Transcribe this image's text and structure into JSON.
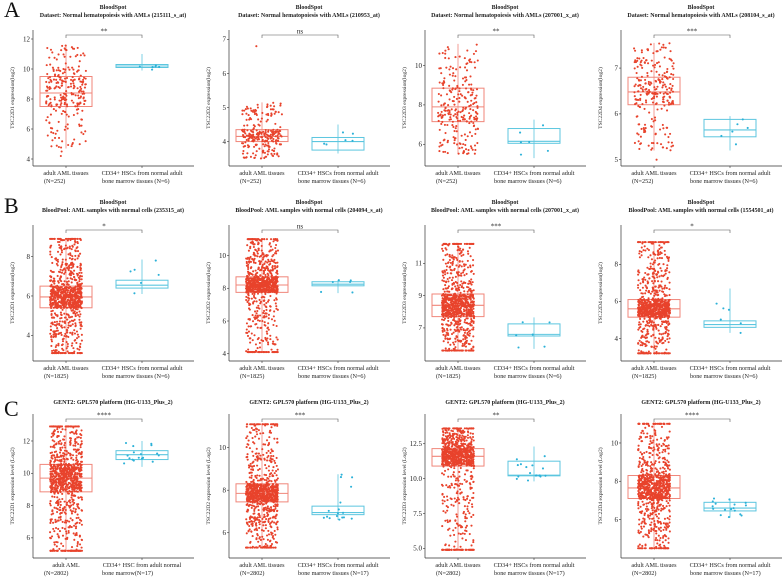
{
  "panel_letters": [
    "A",
    "B",
    "C"
  ],
  "colors": {
    "aml_box": "#f0867a",
    "aml_point": "#e8432c",
    "hsc_box": "#5cc6df",
    "hsc_point": "#2bb1d8",
    "axis": "#333333"
  },
  "chart_data": [
    {
      "type": "box",
      "row": 0,
      "col": 0,
      "title": "BloodSpot",
      "subtitle": "Dataset: Normal hematopoiesis with AMLs (215111_s_at)",
      "ylabel": "TSC22D1 expression(log2)",
      "yticks": [
        "4",
        "6",
        "8",
        "10",
        "12"
      ],
      "ylim": [
        3.8,
        12.2
      ],
      "significance": "**",
      "groups": [
        {
          "label": [
            "adult AML tissues",
            "(N=252)"
          ],
          "n": 252,
          "stats": [
            4.7,
            7.5,
            8.4,
            9.5,
            11.6
          ],
          "outliers": [
            4.2,
            4.5
          ]
        },
        {
          "label": [
            "CD34+ HSCs from normal adult",
            "bone marrow tissues (N=6)"
          ],
          "n": 6,
          "stats": [
            9.9,
            10.1,
            10.2,
            10.3,
            11.0
          ],
          "outliers": []
        }
      ]
    },
    {
      "type": "box",
      "row": 0,
      "col": 1,
      "title": "BloodSpot",
      "subtitle": "Dataset: Normal hematopoiesis with AMLs (210953_at)",
      "ylabel": "TSC22D2 expression(log2)",
      "yticks": [
        "4",
        "5",
        "6",
        "7"
      ],
      "ylim": [
        3.4,
        7.1
      ],
      "significance": "ns",
      "groups": [
        {
          "label": [
            "adult AML tissues",
            "(N=252)"
          ],
          "n": 252,
          "stats": [
            3.5,
            4.0,
            4.15,
            4.35,
            5.15
          ],
          "outliers": [
            6.8
          ]
        },
        {
          "label": [
            "CD34+ HSCs from normal adult",
            "bone marrow tissues (N=6)"
          ],
          "n": 6,
          "stats": [
            3.65,
            3.75,
            4.0,
            4.12,
            4.5
          ],
          "outliers": []
        }
      ]
    },
    {
      "type": "box",
      "row": 0,
      "col": 2,
      "title": "BloodSpot",
      "subtitle": "Dataset: Normal hematopoiesis with AMLs (207001_x_at)",
      "ylabel": "TSC22D3 expression(log2)",
      "yticks": [
        "6",
        "8",
        "10"
      ],
      "ylim": [
        5.1,
        11.5
      ],
      "significance": "**",
      "groups": [
        {
          "label": [
            "adult AML tissues",
            "(N=252)"
          ],
          "n": 252,
          "stats": [
            5.5,
            7.15,
            7.9,
            8.85,
            11.1
          ],
          "outliers": []
        },
        {
          "label": [
            "CD34+ HSCs from normal adult",
            "bone marrow tissues (N=6)"
          ],
          "n": 6,
          "stats": [
            5.3,
            6.05,
            6.15,
            6.8,
            7.25
          ],
          "outliers": []
        }
      ]
    },
    {
      "type": "box",
      "row": 0,
      "col": 3,
      "title": "BloodSpot",
      "subtitle": "Dataset: Normal hematopoiesis with AMLs (208104_s_at)",
      "ylabel": "TSC22D4 expression(log2)",
      "yticks": [
        "5",
        "6",
        "7"
      ],
      "ylim": [
        4.95,
        7.7
      ],
      "significance": "***",
      "groups": [
        {
          "label": [
            "adult AML tissues",
            "(N=252)"
          ],
          "n": 252,
          "stats": [
            5.2,
            6.2,
            6.48,
            6.8,
            7.55
          ],
          "outliers": [
            5.0
          ]
        },
        {
          "label": [
            "CD34+ HSCs from normal adult",
            "bone marrow tissues (N=6)"
          ],
          "n": 6,
          "stats": [
            5.2,
            5.5,
            5.65,
            5.88,
            5.95
          ],
          "outliers": []
        }
      ]
    },
    {
      "type": "box",
      "row": 1,
      "col": 0,
      "title": "BloodSpot",
      "subtitle": "BloodPool: AML samples with normal cells (235315_at)",
      "ylabel": "TSC22D1 expression(log2)",
      "yticks": [
        "4",
        "6",
        "8"
      ],
      "ylim": [
        2.9,
        9.3
      ],
      "significance": "*",
      "groups": [
        {
          "label": [
            "adult AML tissues",
            "(N=1825)"
          ],
          "n": 1825,
          "stats": [
            3.1,
            5.4,
            5.95,
            6.5,
            8.9
          ],
          "outliers": []
        },
        {
          "label": [
            "CD34+ HSCs from normal adult",
            "bone marrow tissues (N=6)"
          ],
          "n": 6,
          "stats": [
            6.1,
            6.4,
            6.55,
            6.8,
            7.85
          ],
          "outliers": []
        }
      ]
    },
    {
      "type": "box",
      "row": 1,
      "col": 1,
      "title": "BloodSpot",
      "subtitle": "BloodPool: AML samples with normal cells (204094_s_at)",
      "ylabel": "TSC22D2 expression(log2)",
      "yticks": [
        "4",
        "6",
        "8",
        "10"
      ],
      "ylim": [
        3.8,
        11.5
      ],
      "significance": "ns",
      "groups": [
        {
          "label": [
            "adult AML tissues",
            "(N=1825)"
          ],
          "n": 1825,
          "stats": [
            4.1,
            7.75,
            8.2,
            8.7,
            11.0
          ],
          "outliers": []
        },
        {
          "label": [
            "CD34+ HSCs from normal adult",
            "bone marrow tissues (N=6)"
          ],
          "n": 6,
          "stats": [
            7.7,
            8.15,
            8.25,
            8.4,
            8.5
          ],
          "outliers": []
        }
      ]
    },
    {
      "type": "box",
      "row": 1,
      "col": 2,
      "title": "BloodSpot",
      "subtitle": "BloodPool: AML samples with normal cells (207001_x_at)",
      "ylabel": "TSC22D3 expression(log2)",
      "yticks": [
        "7",
        "9",
        "11"
      ],
      "ylim": [
        5.2,
        13.0
      ],
      "significance": "***",
      "groups": [
        {
          "label": [
            "adult AML tissues",
            "(N=1825)"
          ],
          "n": 1825,
          "stats": [
            5.6,
            7.7,
            8.4,
            9.1,
            12.2
          ],
          "outliers": []
        },
        {
          "label": [
            "CD34+ HSCs from normal adult",
            "bone marrow tissues (N=6)"
          ],
          "n": 6,
          "stats": [
            5.7,
            6.5,
            6.6,
            7.25,
            7.65
          ],
          "outliers": []
        }
      ]
    },
    {
      "type": "box",
      "row": 1,
      "col": 3,
      "title": "BloodSpot",
      "subtitle": "BloodPool: AML samples with normal cells (1554501_at)",
      "ylabel": "TSC22D4 expression(log2)",
      "yticks": [
        "4",
        "6",
        "8"
      ],
      "ylim": [
        3.0,
        9.8
      ],
      "significance": "*",
      "groups": [
        {
          "label": [
            "adult AML tissues",
            "(N=1825)"
          ],
          "n": 1825,
          "stats": [
            3.2,
            5.15,
            5.6,
            6.1,
            9.2
          ],
          "outliers": []
        },
        {
          "label": [
            "CD34+ HSCs from normal adult",
            "bone marrow tissues (N=6)"
          ],
          "n": 6,
          "stats": [
            4.3,
            4.6,
            4.75,
            4.95,
            6.7
          ],
          "outliers": []
        }
      ]
    },
    {
      "type": "box",
      "row": 2,
      "col": 0,
      "title": "GENT2: GPL570 platform (HG-U133_Plus_2)",
      "subtitle": "",
      "ylabel": "TSC22D1 expression level (Log2)",
      "yticks": [
        "6",
        "8",
        "10",
        "12"
      ],
      "ylim": [
        5.0,
        13.3
      ],
      "significance": "****",
      "groups": [
        {
          "label": [
            "adult AML",
            "(N=2802)"
          ],
          "n": 2802,
          "stats": [
            5.2,
            8.85,
            9.7,
            10.55,
            12.9
          ],
          "outliers": []
        },
        {
          "label": [
            "CD34+ HSC from adult normal",
            "bone marrow(N=17)"
          ],
          "n": 17,
          "stats": [
            10.4,
            10.85,
            11.15,
            11.4,
            12.0
          ],
          "outliers": []
        }
      ]
    },
    {
      "type": "box",
      "row": 2,
      "col": 1,
      "title": "GENT2: GPL570 platform (HG-U133_Plus_2)",
      "subtitle": "",
      "ylabel": "TSC22D2 expression level (Log2)",
      "yticks": [
        "6",
        "8",
        "10"
      ],
      "ylim": [
        5.0,
        11.3
      ],
      "significance": "***",
      "groups": [
        {
          "label": [
            "adult AML tissues",
            "(N=2802)"
          ],
          "n": 2802,
          "stats": [
            5.3,
            7.45,
            7.85,
            8.3,
            11.1
          ],
          "outliers": []
        },
        {
          "label": [
            "CD34+ HSCs from normal adult",
            "bone marrow tissues (N=17)"
          ],
          "n": 17,
          "stats": [
            6.6,
            6.85,
            6.95,
            7.25,
            8.75
          ],
          "outliers": []
        }
      ]
    },
    {
      "type": "box",
      "row": 2,
      "col": 2,
      "title": "GENT2: GPL570 platform (HG-U133_Plus_2)",
      "subtitle": "",
      "ylabel": "TSC22D3 expression level (Log2)",
      "yticks": [
        "5.0",
        "7.5",
        "10.0",
        "12.5"
      ],
      "ylim": [
        4.6,
        14.2
      ],
      "significance": "**",
      "groups": [
        {
          "label": [
            "adult AML tissues",
            "(N=2802)"
          ],
          "n": 2802,
          "stats": [
            4.9,
            10.9,
            11.6,
            12.15,
            13.6
          ],
          "outliers": []
        },
        {
          "label": [
            "CD34+ HSCs from normal adult",
            "bone marrow tissues (N=17)"
          ],
          "n": 17,
          "stats": [
            9.8,
            10.2,
            10.25,
            11.25,
            12.3
          ],
          "outliers": []
        }
      ]
    },
    {
      "type": "box",
      "row": 2,
      "col": 3,
      "title": "GENT2: GPL570 platform (HG-U133_Plus_2)",
      "subtitle": "",
      "ylabel": "TSC22D4 expression level (Log2)",
      "yticks": [
        "6",
        "8",
        "10"
      ],
      "ylim": [
        4.2,
        11.2
      ],
      "significance": "****",
      "groups": [
        {
          "label": [
            "adult AML tissues",
            "(N=2802)"
          ],
          "n": 2802,
          "stats": [
            4.5,
            7.1,
            7.65,
            8.3,
            11.0
          ],
          "outliers": []
        },
        {
          "label": [
            "CD34+ HSCs from normal adult",
            "bone marrow tissues (N=17)"
          ],
          "n": 17,
          "stats": [
            6.1,
            6.45,
            6.6,
            6.9,
            7.1
          ],
          "outliers": []
        }
      ]
    }
  ]
}
